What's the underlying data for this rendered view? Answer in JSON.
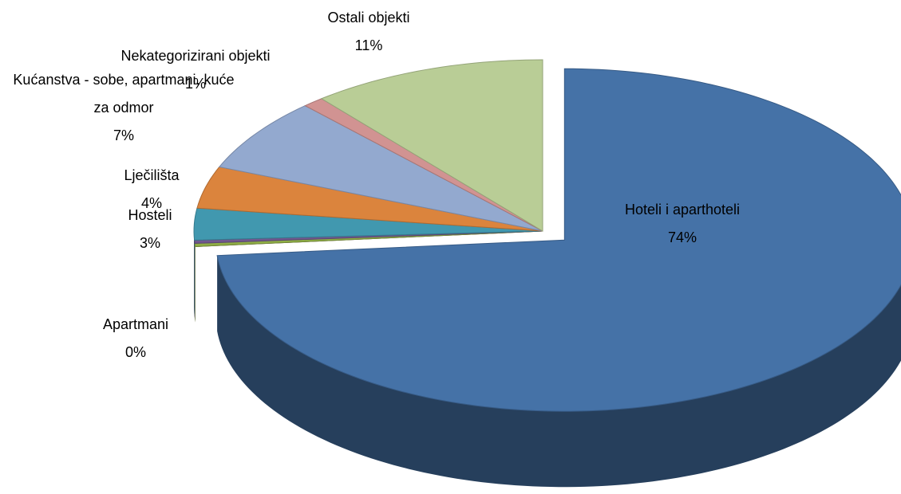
{
  "chart_data": {
    "type": "pie",
    "categories": [
      "Hoteli i aparthoteli",
      "Apartmani",
      null,
      null,
      "Hosteli",
      "Lječilišta",
      "Kućanstva - sobe, apartmani, kuće za odmor",
      "Nekategorizirani objekti",
      "Ostali objekti"
    ],
    "values": [
      74,
      0,
      0.3,
      0.3,
      3,
      4,
      7,
      1,
      11
    ],
    "value_labels": [
      "74%",
      "0%",
      null,
      null,
      "3%",
      "4%",
      "7%",
      "1%",
      "11%"
    ],
    "colors": [
      "#4572a7",
      "#5c2321",
      "#8fae45",
      "#71588f",
      "#4198af",
      "#db843d",
      "#93a9cf",
      "#d19392",
      "#b9cd96"
    ],
    "exploded": [
      0
    ]
  }
}
